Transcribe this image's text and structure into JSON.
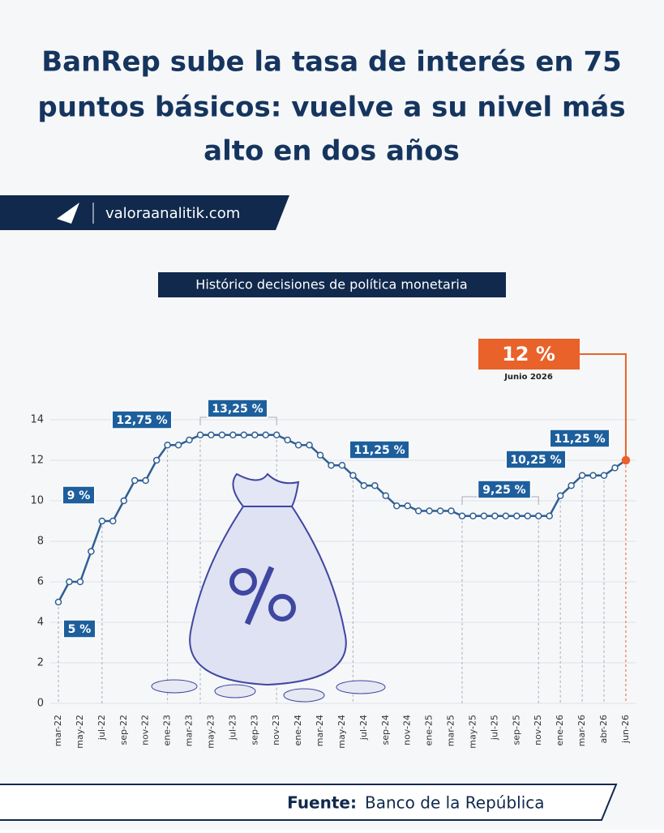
{
  "header": {
    "title": [
      "BanRep sube la tasa de interés en 75",
      "puntos básicos: vuelve a su nivel más",
      "alto en dos años"
    ],
    "site": "valoraanalitik.com"
  },
  "chart_data": {
    "type": "line",
    "title": "Histórico decisiones de política monetaria",
    "color": "#2f5f93",
    "categories": [
      "mar-22",
      null,
      "may-22",
      null,
      "jul-22",
      null,
      "sep-22",
      null,
      "nov-22",
      null,
      "ene-23",
      null,
      "mar-23",
      null,
      "may-23",
      null,
      "jul-23",
      null,
      "sep-23",
      null,
      "nov-23",
      null,
      "ene-24",
      null,
      "mar-24",
      null,
      "may-24",
      null,
      "jul-24",
      null,
      "sep-24",
      null,
      "nov-24",
      null,
      "ene-25",
      null,
      "mar-25",
      null,
      "may-25",
      null,
      "jul-25",
      null,
      "sep-25",
      null,
      "nov-25",
      null,
      "ene-26",
      null,
      "mar-26",
      null,
      "abr-26",
      null,
      "jun-26"
    ],
    "values": [
      5,
      6,
      6,
      7.5,
      9,
      9,
      10,
      11,
      11,
      12,
      12.75,
      12.75,
      13,
      13.25,
      13.25,
      13.25,
      13.25,
      13.25,
      13.25,
      13.25,
      13.25,
      13,
      12.75,
      12.75,
      12.25,
      11.75,
      11.75,
      11.25,
      10.75,
      10.75,
      10.25,
      9.75,
      9.75,
      9.5,
      9.5,
      9.5,
      9.5,
      9.25,
      9.25,
      9.25,
      9.25,
      9.25,
      9.25,
      9.25,
      9.25,
      9.25,
      10.25,
      10.75,
      11.25,
      11.25,
      11.25,
      11.625,
      12
    ],
    "value_labels": [
      "5 %",
      null,
      null,
      null,
      "9 %",
      null,
      null,
      null,
      null,
      null,
      "12,75 %",
      null,
      null,
      null,
      null,
      null,
      "13,25 %",
      null,
      null,
      null,
      null,
      null,
      null,
      null,
      null,
      null,
      null,
      "11,25 %",
      null,
      null,
      null,
      null,
      null,
      null,
      null,
      null,
      null,
      null,
      null,
      null,
      null,
      "9,25 %",
      null,
      null,
      null,
      null,
      "10,25 %",
      null,
      "11,25 %",
      null,
      null,
      null,
      "12 %"
    ],
    "annotation": "Junio 2026",
    "ylim": [
      0,
      14
    ],
    "yticks": [
      0,
      2,
      4,
      6,
      8,
      10,
      12,
      14
    ],
    "grid": true
  },
  "footer": {
    "label": "Fuente:",
    "text": "Banco de la República"
  }
}
